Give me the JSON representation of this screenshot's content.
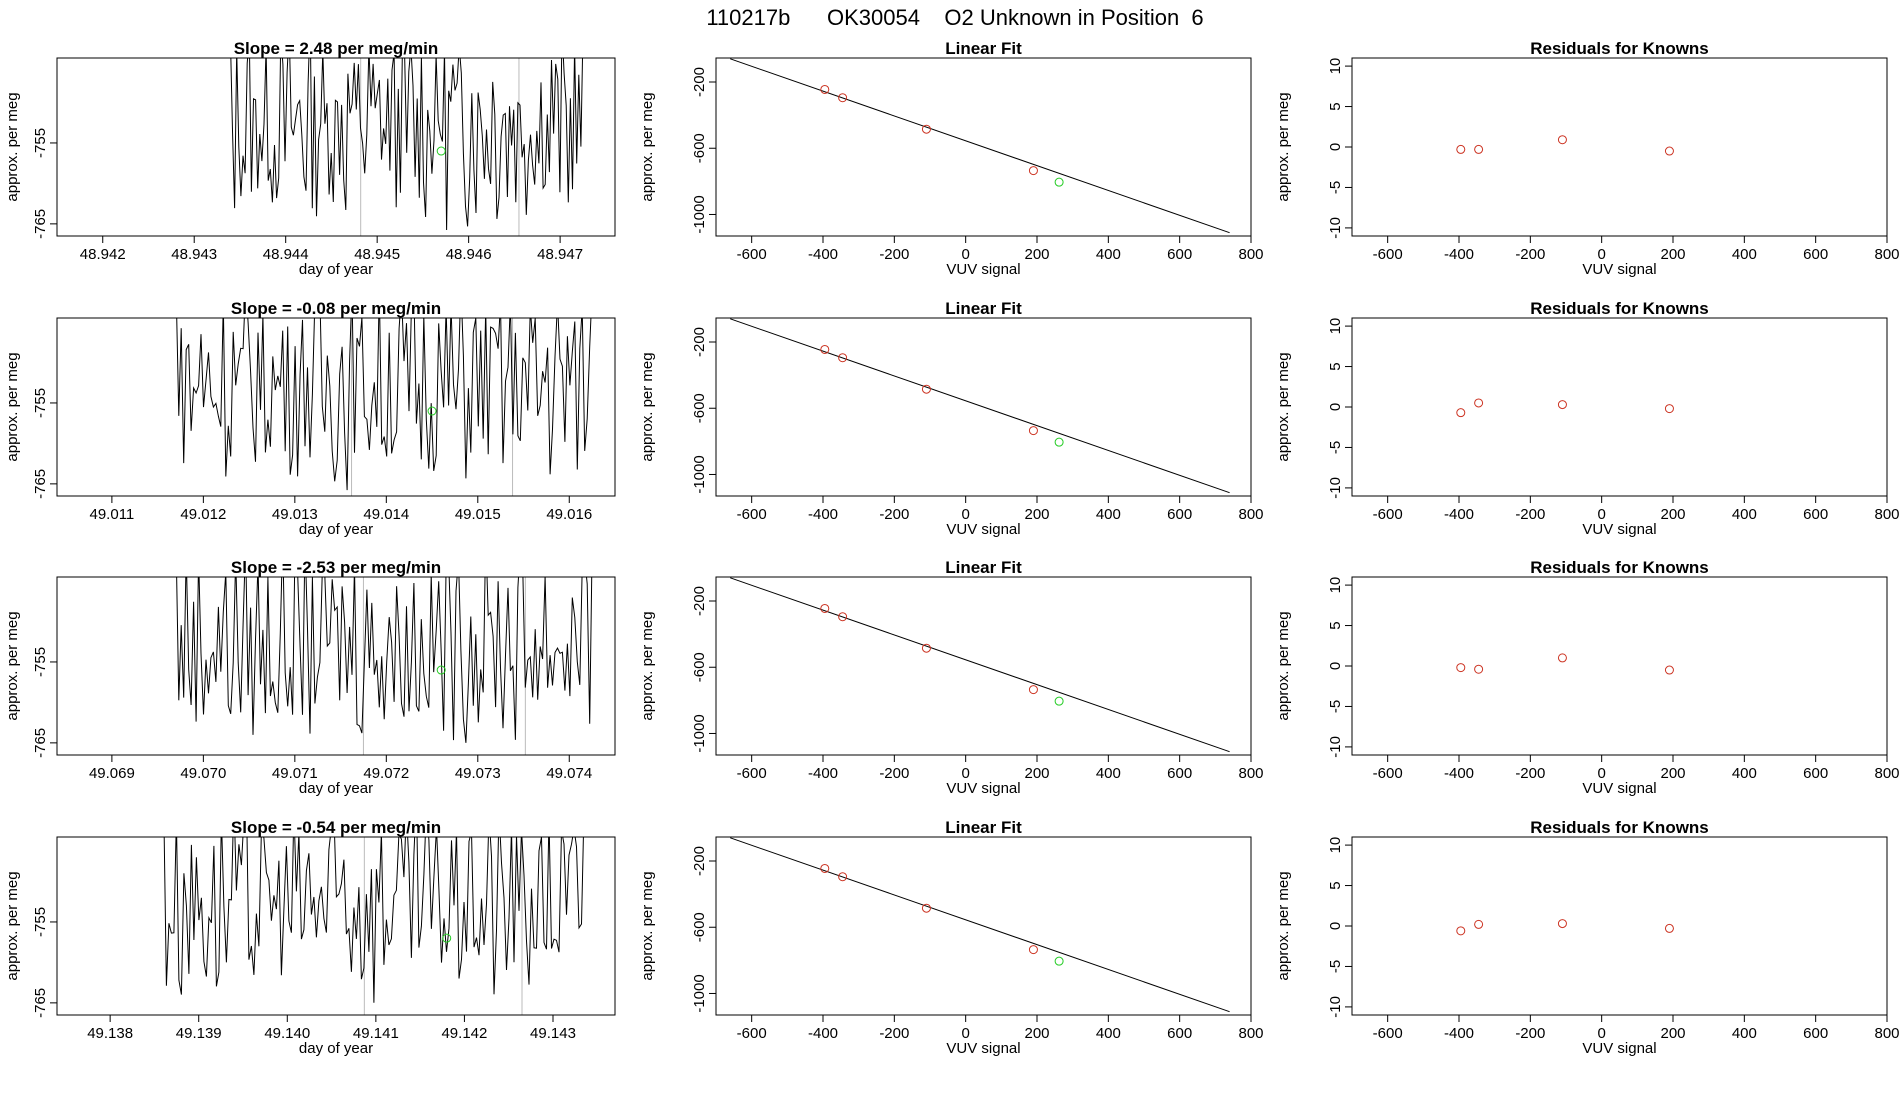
{
  "page_title": "110217b      OK30054    O2 Unknown in Position  6",
  "colors": {
    "line": "#000000",
    "known": "#cc3322",
    "unknown": "#22cc22",
    "marker": "#bbbbbb",
    "frame": "#000000"
  },
  "rows": [
    {
      "time": {
        "title": "Slope =  2.48  per meg/min",
        "xlabel": "day of year",
        "ylabel": "approx. per meg",
        "xticks": [
          "48.942",
          "48.943",
          "48.944",
          "48.945",
          "48.946",
          "48.947"
        ],
        "yticks": [
          "-755",
          "-765"
        ],
        "xlim": [
          48.9415,
          48.9476
        ],
        "ylim": [
          -766.5,
          -744.5
        ],
        "tick_values": [
          48.942,
          48.943,
          48.944,
          48.945,
          48.946,
          48.947
        ],
        "ytick_values": [
          -755,
          -765
        ],
        "seg_start": 48.94335,
        "seg_end": 48.94725,
        "markers": [
          48.94482,
          48.94655
        ],
        "unknown_point": [
          48.9457,
          -756.0
        ]
      },
      "fit": {
        "title": "Linear Fit",
        "xlabel": "VUV signal",
        "ylabel": "approx. per meg"
      },
      "resid": {
        "title": "Residuals for Knowns",
        "xlabel": "VUV signal",
        "ylabel": "approx. per meg",
        "values": [
          -0.3,
          -0.3,
          0.9,
          -0.5
        ]
      }
    },
    {
      "time": {
        "title": "Slope =  -0.08  per meg/min",
        "xlabel": "day of year",
        "ylabel": "approx. per meg",
        "xticks": [
          "49.011",
          "49.012",
          "49.013",
          "49.014",
          "49.015",
          "49.016"
        ],
        "yticks": [
          "-755",
          "-765"
        ],
        "xlim": [
          49.0104,
          49.0165
        ],
        "ylim": [
          -766.5,
          -744.5
        ],
        "tick_values": [
          49.011,
          49.012,
          49.013,
          49.014,
          49.015,
          49.016
        ],
        "ytick_values": [
          -755,
          -765
        ],
        "seg_start": 49.01165,
        "seg_end": 49.01625,
        "markers": [
          49.01362,
          49.01538
        ],
        "unknown_point": [
          49.0145,
          -756.0
        ]
      },
      "fit": {
        "title": "Linear Fit",
        "xlabel": "VUV signal",
        "ylabel": "approx. per meg"
      },
      "resid": {
        "title": "Residuals for Knowns",
        "xlabel": "VUV signal",
        "ylabel": "approx. per meg",
        "values": [
          -0.7,
          0.5,
          0.3,
          -0.2
        ]
      }
    },
    {
      "time": {
        "title": "Slope =  -2.53  per meg/min",
        "xlabel": "day of year",
        "ylabel": "approx. per meg",
        "xticks": [
          "49.069",
          "49.070",
          "49.071",
          "49.072",
          "49.073",
          "49.074"
        ],
        "yticks": [
          "-755",
          "-765"
        ],
        "xlim": [
          49.0684,
          49.0745
        ],
        "ylim": [
          -766.5,
          -744.5
        ],
        "tick_values": [
          49.069,
          49.07,
          49.071,
          49.072,
          49.073,
          49.074
        ],
        "ytick_values": [
          -755,
          -765
        ],
        "seg_start": 49.06965,
        "seg_end": 49.07425,
        "markers": [
          49.07175,
          49.07352
        ],
        "unknown_point": [
          49.0726,
          -756.0
        ]
      },
      "fit": {
        "title": "Linear Fit",
        "xlabel": "VUV signal",
        "ylabel": "approx. per meg"
      },
      "resid": {
        "title": "Residuals for Knowns",
        "xlabel": "VUV signal",
        "ylabel": "approx. per meg",
        "values": [
          -0.2,
          -0.4,
          1.0,
          -0.5
        ]
      }
    },
    {
      "time": {
        "title": "Slope =  -0.54  per meg/min",
        "xlabel": "day of year",
        "ylabel": "approx. per meg",
        "xticks": [
          "49.138",
          "49.139",
          "49.140",
          "49.141",
          "49.142",
          "49.143"
        ],
        "yticks": [
          "-755",
          "-765"
        ],
        "xlim": [
          49.1374,
          49.1437
        ],
        "ylim": [
          -766.5,
          -744.5
        ],
        "tick_values": [
          49.138,
          49.139,
          49.14,
          49.141,
          49.142,
          49.143
        ],
        "ytick_values": [
          -755,
          -765
        ],
        "seg_start": 49.13855,
        "seg_end": 49.14335,
        "markers": [
          49.14087,
          49.14265
        ],
        "unknown_point": [
          49.1418,
          -757.0
        ]
      },
      "fit": {
        "title": "Linear Fit",
        "xlabel": "VUV signal",
        "ylabel": "approx. per meg"
      },
      "resid": {
        "title": "Residuals for Knowns",
        "xlabel": "VUV signal",
        "ylabel": "approx. per meg",
        "values": [
          -0.6,
          0.2,
          0.3,
          -0.3
        ]
      }
    }
  ],
  "chart_data": [
    {
      "type": "line",
      "title": "Slope =  (per row)  per meg/min",
      "xlabel": "day of year",
      "ylabel": "approx. per meg",
      "description_series": "noisy time series of approx. per meg vs day of year (4 panels)",
      "ylim": [
        -766.5,
        -744.5
      ]
    },
    {
      "type": "scatter",
      "title": "Linear Fit",
      "xlabel": "VUV signal",
      "ylabel": "approx. per meg",
      "xlim": [
        -700,
        800
      ],
      "ylim": [
        -1130,
        -55
      ],
      "xticks": [
        "-600",
        "-400",
        "-200",
        "0",
        "200",
        "400",
        "600",
        "800"
      ],
      "yticks": [
        "-200",
        "-600",
        "-1000"
      ],
      "fit_line": {
        "x": [
          -660,
          740
        ],
        "y": [
          -60,
          -1110
        ]
      },
      "series": [
        {
          "name": "knowns",
          "x": [
            -395,
            -345,
            -110,
            190
          ],
          "y": [
            -245,
            -295,
            -485,
            -735
          ]
        },
        {
          "name": "unknown",
          "x": [
            262
          ],
          "y": [
            -805
          ]
        }
      ]
    },
    {
      "type": "scatter",
      "title": "Residuals for Knowns",
      "xlabel": "VUV signal",
      "ylabel": "approx. per meg",
      "xlim": [
        -700,
        800
      ],
      "ylim": [
        -11,
        11
      ],
      "xticks": [
        "-600",
        "-400",
        "-200",
        "0",
        "200",
        "400",
        "600",
        "800"
      ],
      "yticks": [
        "10",
        "5",
        "0",
        "-5",
        "-10"
      ],
      "x": [
        -395,
        -345,
        -110,
        190
      ]
    }
  ]
}
